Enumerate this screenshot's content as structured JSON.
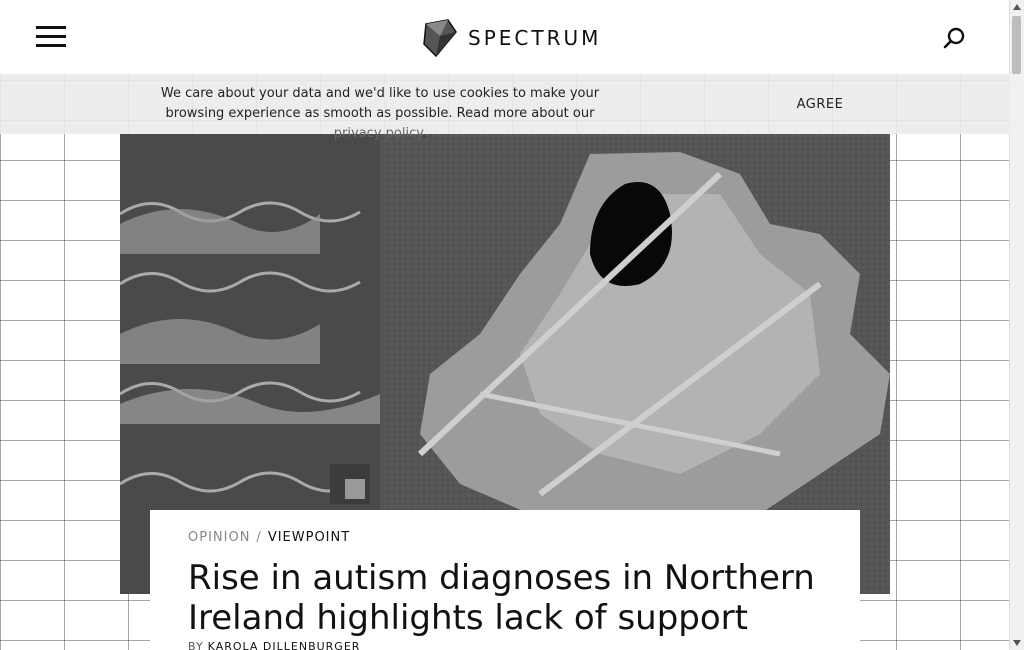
{
  "header": {
    "menu_icon": "hamburger-menu-icon",
    "logo_text": "SPECTRUM",
    "logo_icon": "spectrum-cube-icon",
    "search_icon": "search-icon"
  },
  "cookie_banner": {
    "text_before_link": "We care about your data and we'd like to use cookies to make your browsing experience as smooth as possible. Read more about our ",
    "link_text": "privacy policy",
    "text_after_link": ".",
    "agree_label": "AGREE"
  },
  "hero": {
    "image_icon": "hero-illustration"
  },
  "article": {
    "category_primary": "OPINION",
    "category_separator": "/",
    "category_secondary": "VIEWPOINT",
    "headline": "Rise in autism diagnoses in Northern Ireland highlights lack of support",
    "byline_prefix": "BY",
    "author": "KAROLA DILLENBURGER"
  },
  "colors": {
    "background": "#ffffff",
    "text": "#111111",
    "muted": "#888888",
    "banner": "#ebebeb"
  }
}
